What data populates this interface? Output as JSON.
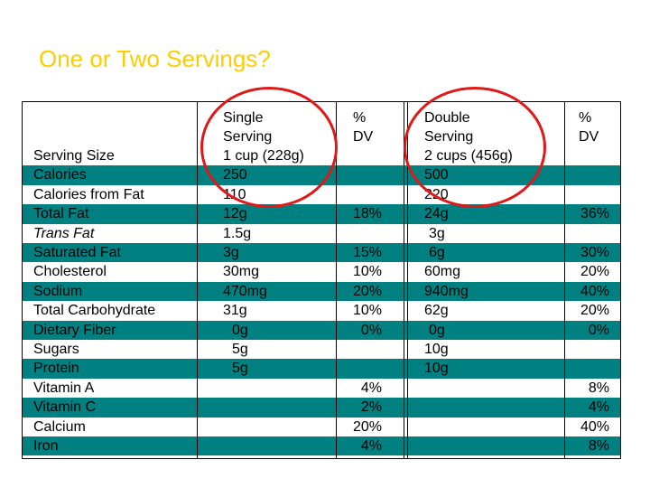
{
  "title": "One or Two Servings?",
  "colors": {
    "title": "#ffcc00",
    "band": "#008080",
    "circle": "#e01818"
  },
  "headers": {
    "single": [
      "Single",
      "Serving"
    ],
    "pct1": [
      "%",
      "DV"
    ],
    "double": [
      "Double",
      "Serving"
    ],
    "pct2": [
      "%",
      "DV"
    ]
  },
  "rows": [
    {
      "label": "Serving Size",
      "single": "1 cup (228g)",
      "dv1": "",
      "double": "2 cups (456g)",
      "dv2": ""
    },
    {
      "label": "Calories",
      "single": "250",
      "dv1": "",
      "double": "500",
      "dv2": ""
    },
    {
      "label": "Calories from Fat",
      "single": "110",
      "dv1": "",
      "double": "220",
      "dv2": ""
    },
    {
      "label": "Total Fat",
      "single": "12g",
      "dv1": "18%",
      "double": "24g",
      "dv2": "36%"
    },
    {
      "label": "Trans Fat",
      "single": "1.5g",
      "dv1": "",
      "double": "3g",
      "dv2": ""
    },
    {
      "label": "Saturated Fat",
      "single": "3g",
      "dv1": "15%",
      "double": "6g",
      "dv2": "30%"
    },
    {
      "label": "Cholesterol",
      "single": "30mg",
      "dv1": "10%",
      "double": "60mg",
      "dv2": "20%"
    },
    {
      "label": "Sodium",
      "single": "470mg",
      "dv1": "20%",
      "double": "940mg",
      "dv2": "40%"
    },
    {
      "label": "Total Carbohydrate",
      "single": "31g",
      "dv1": "10%",
      "double": "62g",
      "dv2": "20%"
    },
    {
      "label": "Dietary Fiber",
      "single": "0g",
      "dv1": "0%",
      "double": "0g",
      "dv2": "0%"
    },
    {
      "label": "Sugars",
      "single": "5g",
      "dv1": "",
      "double": "10g",
      "dv2": ""
    },
    {
      "label": "Protein",
      "single": "5g",
      "dv1": "",
      "double": "10g",
      "dv2": ""
    },
    {
      "label": "Vitamin A",
      "single": "",
      "dv1": "4%",
      "double": "",
      "dv2": "8%"
    },
    {
      "label": "Vitamin C",
      "single": "",
      "dv1": "2%",
      "double": "",
      "dv2": "4%"
    },
    {
      "label": "Calcium",
      "single": "",
      "dv1": "20%",
      "double": "",
      "dv2": "40%"
    },
    {
      "label": "Iron",
      "single": "",
      "dv1": "4%",
      "double": "",
      "dv2": "8%"
    }
  ]
}
